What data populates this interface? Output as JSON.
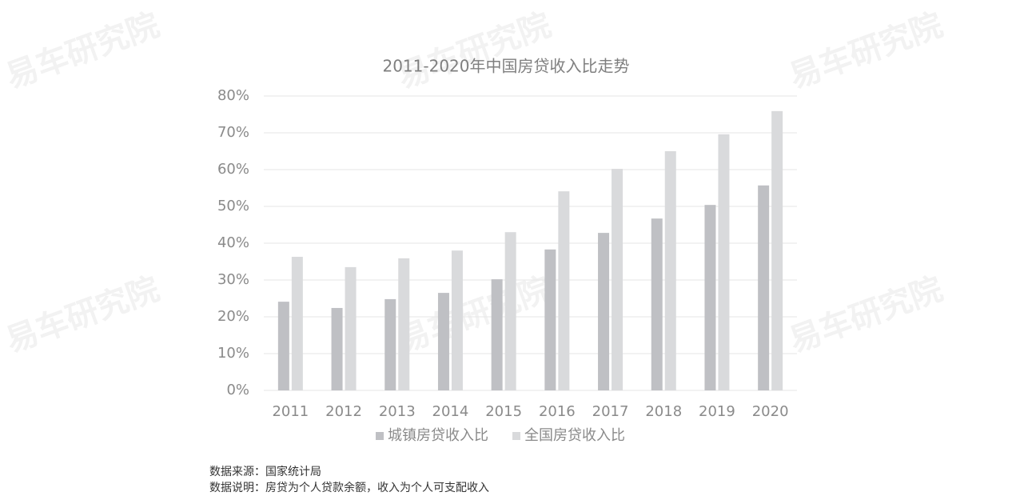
{
  "chart_data": {
    "type": "bar",
    "title": "2011-2020年中国房贷收入比走势",
    "categories": [
      "2011",
      "2012",
      "2013",
      "2014",
      "2015",
      "2016",
      "2017",
      "2018",
      "2019",
      "2020"
    ],
    "series": [
      {
        "name": "城镇房贷收入比",
        "color": "#bfc0c4",
        "values": [
          24.1,
          22.4,
          24.8,
          26.5,
          30.2,
          38.3,
          42.8,
          46.7,
          50.4,
          55.7
        ]
      },
      {
        "name": "全国房贷收入比",
        "color": "#d9dadc",
        "values": [
          36.3,
          33.5,
          35.9,
          38.0,
          43.0,
          54.1,
          60.2,
          65.0,
          69.6,
          75.9
        ]
      }
    ],
    "ylim": [
      0,
      80
    ],
    "yticks": [
      {
        "value": 0,
        "label": "0%"
      },
      {
        "value": 10,
        "label": "10%"
      },
      {
        "value": 20,
        "label": "20%"
      },
      {
        "value": 30,
        "label": "30%"
      },
      {
        "value": 40,
        "label": "40%"
      },
      {
        "value": 50,
        "label": "50%"
      },
      {
        "value": 60,
        "label": "60%"
      },
      {
        "value": 70,
        "label": "70%"
      },
      {
        "value": 80,
        "label": "80%"
      }
    ],
    "grid": true,
    "legend": "bottom"
  },
  "notes": [
    "数据来源：国家统计局",
    "数据说明：房贷为个人贷款余额，收入为个人可支配收入"
  ],
  "watermark": "易车研究院"
}
